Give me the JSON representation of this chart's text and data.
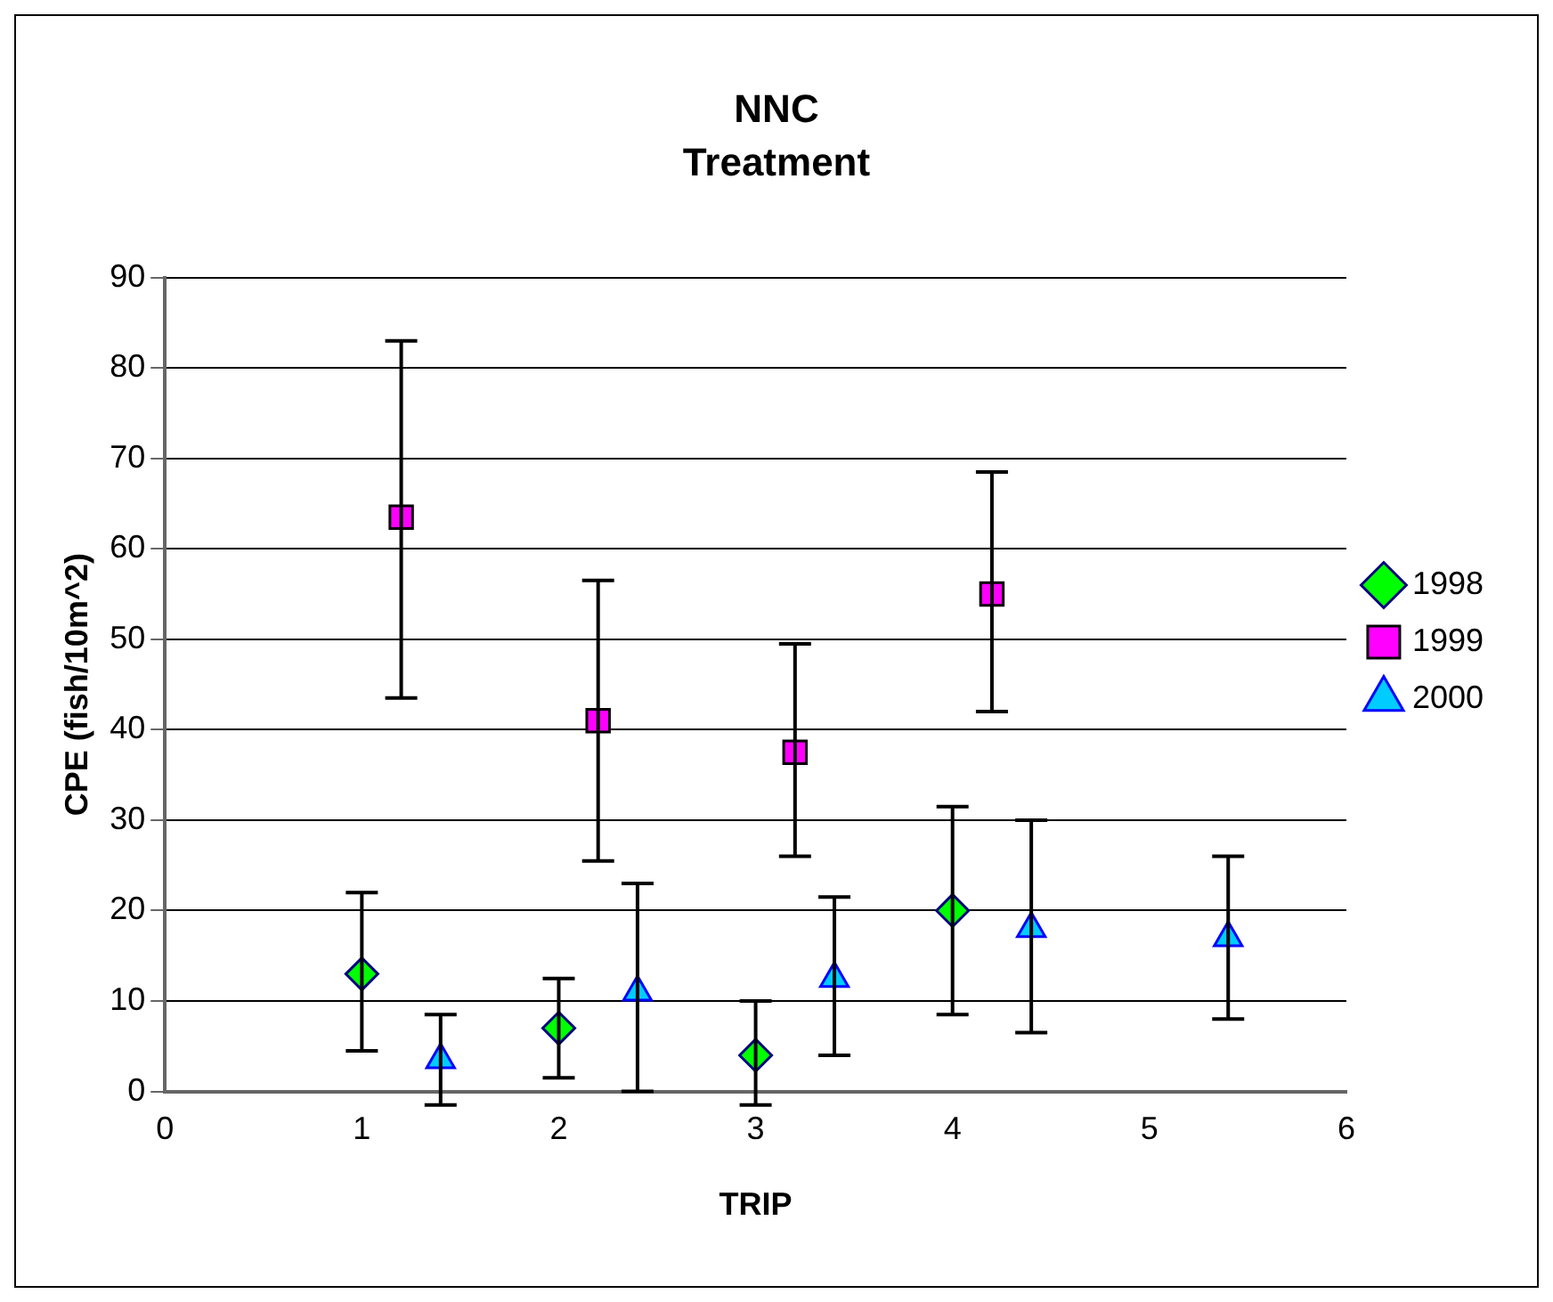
{
  "chart_data": {
    "type": "scatter",
    "title": "NNC",
    "subtitle": "Treatment",
    "xlabel": "TRIP",
    "ylabel": "CPE (fish/10m^2)",
    "xlim": [
      0,
      6
    ],
    "xticks": [
      0,
      1,
      2,
      3,
      4,
      5,
      6
    ],
    "ylim": [
      0,
      90
    ],
    "yticks": [
      0,
      10,
      20,
      30,
      40,
      50,
      60,
      70,
      80,
      90
    ],
    "grid": "y",
    "legend": "right",
    "series": [
      {
        "name": "1998",
        "color": "#00ff00",
        "marker": "diamond",
        "x": [
          1,
          2,
          3,
          4
        ],
        "values": [
          13,
          7,
          4,
          20
        ],
        "errors": [
          [
            4.5,
            22
          ],
          [
            1.5,
            12.5
          ],
          [
            -1.5,
            10
          ],
          [
            8.5,
            31.5
          ]
        ]
      },
      {
        "name": "1999",
        "color": "#ff00ff",
        "marker": "square",
        "x": [
          1.2,
          2.2,
          3.2,
          4.2
        ],
        "values": [
          63.5,
          41,
          37.5,
          55
        ],
        "errors": [
          [
            43.5,
            83
          ],
          [
            25.5,
            56.5
          ],
          [
            26,
            49.5
          ],
          [
            42,
            68.5
          ]
        ]
      },
      {
        "name": "2000",
        "color": "#00ccff",
        "marker": "triangle",
        "x": [
          1.4,
          2.4,
          3.4,
          4.4,
          5.4
        ],
        "values": [
          3.5,
          11,
          12.5,
          18,
          17
        ],
        "errors": [
          [
            -1.5,
            8.5
          ],
          [
            0,
            23
          ],
          [
            4,
            21.5
          ],
          [
            6.5,
            30
          ],
          [
            8,
            26
          ]
        ]
      }
    ]
  }
}
